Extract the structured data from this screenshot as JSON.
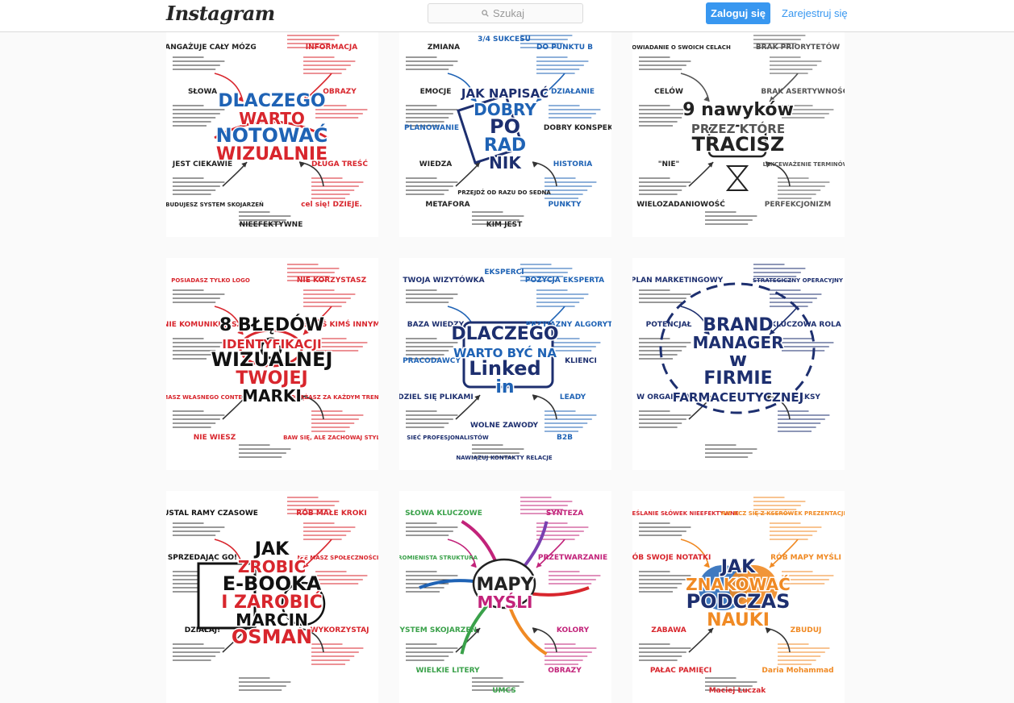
{
  "header": {
    "logo": "Instagram",
    "search_placeholder": "Szukaj",
    "login_label": "Zaloguj się",
    "signup_label": "Zarejestruj się"
  },
  "colors": {
    "accent": "#3897f0",
    "sketch_red": "#d8262d",
    "sketch_blue": "#1f63b5",
    "sketch_navy": "#1d2f6f",
    "sketch_orange": "#f08a24",
    "sketch_green": "#3aa14a",
    "sketch_magenta": "#c2237a"
  },
  "posts": [
    {
      "title_lines": [
        "DLACZEGO",
        "WARTO",
        "NOTOWAĆ",
        "WIZUALNIE"
      ],
      "labels": [
        "ANGAŻUJE CAŁY MÓZG",
        "INFORMACJA",
        "SŁOWA",
        "OBRAZY",
        "JEST CIEKAWIE",
        "DŁUGA TREŚĆ",
        "BUDUJESZ SYSTEM SKOJARZEŃ",
        "cel się! DZIEJE.",
        "NIEEFEKTYWNE"
      ]
    },
    {
      "title_lines": [
        "JAK NAPISAĆ",
        "DOBRY",
        "PO",
        "RAD",
        "NIK"
      ],
      "labels": [
        "ZMIANA",
        "DO PUNKTU B",
        "EMOCJE",
        "DZIAŁANIE",
        "WIEDZA",
        "HISTORIA",
        "METAFORA",
        "PUNKTY",
        "KIM JEST",
        "PLANOWANIE",
        "DOBRY KONSPEKT",
        "3/4 SUKCESU",
        "PRZEJDŹ OD RAZU DO SEDNA"
      ]
    },
    {
      "title_lines": [
        "9 nawyków",
        "PRZEZ KTÓRE",
        "TRACISZ"
      ],
      "labels": [
        "OPOWIADANIE O SWOICH CELACH",
        "BRAK PRIORYTETÓW",
        "CELÓW",
        "BRAK ASERTYWNOŚCI",
        "\"NIE\"",
        "LEKCEWAŻENIE TERMINÓW",
        "WIELOZADANIOWOŚĆ",
        "PERFEKCJONIZM"
      ]
    },
    {
      "title_lines": [
        "8 BŁĘDÓW",
        "IDENTYFIKACJI",
        "WIZUALNEJ",
        "TWOJEJ",
        "MARKI"
      ],
      "labels": [
        "POSIADASZ TYLKO LOGO",
        "NIE KORZYSTASZ",
        "NIE KOMUNIKUJESZ",
        "JESTEŚ KIMŚ INNYM",
        "NIE MASZ WŁASNEGO CONTENTU",
        "PODĄŻASZ ZA KAŻDYM TRENDEM",
        "NIE WIESZ",
        "BAW SIĘ, ALE ZACHOWAJ STYL"
      ]
    },
    {
      "title_lines": [
        "DLACZEGO",
        "WARTO BYĆ NA",
        "Linked",
        "in"
      ],
      "labels": [
        "TWOJA WIZYTÓWKA",
        "POZYCJA EKSPERTA",
        "BAZA WIEDZY",
        "PRZYJAZNY ALGORYTM",
        "DZIEL SIĘ PLIKAMI",
        "LEADY",
        "SIEĆ PROFESJONALISTÓW",
        "B2B",
        "NAWIĄZUJ KONTAKTY RELACJE",
        "PRACODAWCY",
        "KLIENCI",
        "EKSPERCI",
        "WOLNE ZAWODY"
      ]
    },
    {
      "title_lines": [
        "BRAND",
        "MANAGER",
        "w",
        "FIRMIE",
        "FARMACEUTYCZNEJ"
      ],
      "labels": [
        "PLAN MARKETINGOWY",
        "STRATEGICZNY OPERACYJNY",
        "POTENCJAŁ",
        "KLUCZOWA ROLA",
        "W ORGANIZACJI",
        "MAKSY"
      ]
    },
    {
      "title_lines": [
        "JAK",
        "ZROBIĆ",
        "E-BOOKA",
        "I ZAROBIĆ",
        "MARCIN",
        "OSMAN"
      ],
      "labels": [
        "USTAL RAMY CZASOWE",
        "RÓB MAŁE KROKI",
        "SPRZEDAJĄC GO!",
        "NIE MASZ SPOŁECZNOŚCI?",
        "DZIAŁAJ!",
        "WYKORZYSTAJ"
      ]
    },
    {
      "title_lines": [
        "MAPY",
        "MYŚLI"
      ],
      "labels": [
        "SŁOWA KLUCZOWE",
        "SYNTEZA",
        "PROMIENISTA STRUKTURA",
        "PRZETWARZANIE",
        "SYSTEM SKOJARZEŃ",
        "KOLORY",
        "WIELKIE LITERY",
        "OBRAZY",
        "UMCS"
      ]
    },
    {
      "title_lines": [
        "JAK",
        "ZNAKOWAĆ",
        "PODCZAS",
        "NAUKI"
      ],
      "labels": [
        "ZAKREŚLANIE SŁÓWEK NIEEFEKTYWNE",
        "NIE UCZ SIĘ Z KSERÓWEK PREZENTACJI KSIĄŻEK",
        "RÓB SWOJE NOTATKI",
        "RÓB MAPY MYŚLI",
        "ZABAWA",
        "ZBUDUJ",
        "PAŁAC PAMIĘCI",
        "Daria Mohammad",
        "Maciej Łuczak"
      ]
    }
  ]
}
